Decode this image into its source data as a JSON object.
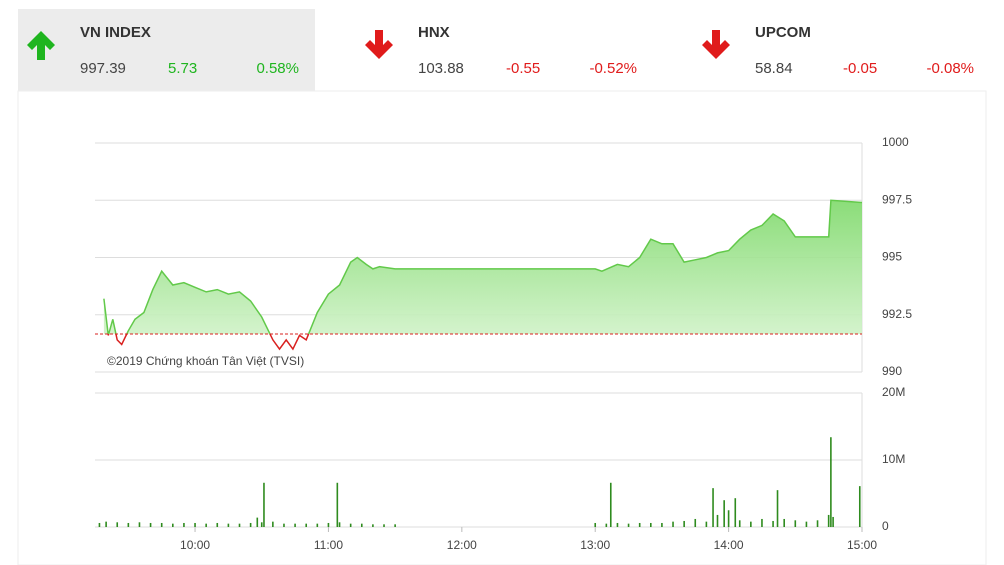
{
  "header": {
    "indices": [
      {
        "name": "VN INDEX",
        "value": "997.39",
        "change": "5.73",
        "percent": "0.58%",
        "direction": "up"
      },
      {
        "name": "HNX",
        "value": "103.88",
        "change": "-0.55",
        "percent": "-0.52%",
        "direction": "down"
      },
      {
        "name": "UPCOM",
        "value": "58.84",
        "change": "-0.05",
        "percent": "-0.08%",
        "direction": "down"
      }
    ]
  },
  "chart_data": [
    {
      "type": "line",
      "annotation": "©2019 Chứng khoán Tân Việt (TVSI)",
      "x": [
        "09:19",
        "09:21",
        "09:23",
        "09:25",
        "09:27",
        "09:30",
        "09:33",
        "09:37",
        "09:41",
        "09:45",
        "09:50",
        "09:55",
        "10:00",
        "10:05",
        "10:10",
        "10:15",
        "10:20",
        "10:25",
        "10:30",
        "10:35",
        "10:38",
        "10:41",
        "10:44",
        "10:47",
        "10:50",
        "10:55",
        "11:00",
        "11:05",
        "11:10",
        "11:13",
        "11:17",
        "11:20",
        "11:23",
        "11:30",
        "13:00",
        "13:03",
        "13:10",
        "13:15",
        "13:20",
        "13:25",
        "13:30",
        "13:35",
        "13:40",
        "13:45",
        "13:50",
        "13:55",
        "14:00",
        "14:05",
        "14:10",
        "14:15",
        "14:20",
        "14:25",
        "14:30",
        "14:45",
        "14:46",
        "15:00"
      ],
      "values": [
        993.2,
        991.6,
        992.3,
        991.4,
        991.2,
        991.8,
        992.3,
        992.6,
        993.6,
        994.4,
        993.8,
        993.9,
        993.7,
        993.5,
        993.6,
        993.4,
        993.5,
        993.1,
        992.4,
        991.4,
        991.0,
        991.4,
        991.0,
        991.6,
        991.4,
        992.6,
        993.4,
        993.8,
        994.8,
        995.0,
        994.7,
        994.5,
        994.6,
        994.5,
        994.5,
        994.4,
        994.7,
        994.6,
        995.0,
        995.8,
        995.6,
        995.6,
        994.8,
        994.9,
        995.0,
        995.2,
        995.3,
        995.8,
        996.2,
        996.4,
        996.9,
        996.6,
        995.9,
        995.9,
        997.5,
        997.4
      ],
      "reference": 991.66,
      "color": "#62c94a",
      "below_color": "#d9201f",
      "xlim": [
        "09:15",
        "15:00"
      ],
      "ylim": [
        990,
        1000
      ],
      "yticks": [
        990,
        992.5,
        995,
        997.5,
        1000
      ],
      "grid": true
    },
    {
      "type": "bar",
      "color": "#2e8b1e",
      "x": [
        "09:17",
        "09:20",
        "09:25",
        "09:30",
        "09:35",
        "09:40",
        "09:45",
        "09:50",
        "09:55",
        "10:00",
        "10:05",
        "10:10",
        "10:15",
        "10:20",
        "10:25",
        "10:28",
        "10:30",
        "10:31",
        "10:35",
        "10:40",
        "10:45",
        "10:50",
        "10:55",
        "11:00",
        "11:04",
        "11:05",
        "11:10",
        "11:15",
        "11:20",
        "11:25",
        "11:30",
        "13:00",
        "13:05",
        "13:07",
        "13:10",
        "13:15",
        "13:20",
        "13:25",
        "13:30",
        "13:35",
        "13:40",
        "13:45",
        "13:50",
        "13:53",
        "13:55",
        "13:58",
        "14:00",
        "14:03",
        "14:05",
        "14:10",
        "14:15",
        "14:20",
        "14:22",
        "14:25",
        "14:30",
        "14:35",
        "14:40",
        "14:45",
        "14:46",
        "14:47",
        "14:59"
      ],
      "values": [
        0.6,
        0.8,
        0.7,
        0.6,
        0.7,
        0.6,
        0.6,
        0.5,
        0.6,
        0.6,
        0.5,
        0.6,
        0.5,
        0.5,
        0.6,
        1.4,
        0.7,
        6.6,
        0.8,
        0.5,
        0.5,
        0.5,
        0.5,
        0.6,
        6.6,
        0.7,
        0.5,
        0.5,
        0.4,
        0.4,
        0.4,
        0.6,
        0.5,
        6.6,
        0.6,
        0.5,
        0.6,
        0.6,
        0.6,
        0.8,
        0.9,
        1.2,
        0.8,
        5.8,
        1.8,
        4.0,
        2.5,
        4.3,
        1.0,
        0.8,
        1.2,
        0.9,
        5.5,
        1.2,
        1.0,
        0.8,
        1.0,
        1.8,
        13.4,
        1.5,
        6.1
      ],
      "xlim": [
        "09:15",
        "15:00"
      ],
      "xticks": [
        "10:00",
        "11:00",
        "12:00",
        "13:00",
        "14:00",
        "15:00"
      ],
      "ylim": [
        0,
        20
      ],
      "yticks": [
        0,
        {
          "value": 10,
          "label": "10M"
        },
        {
          "value": 20,
          "label": "20M"
        }
      ],
      "grid": true
    }
  ]
}
